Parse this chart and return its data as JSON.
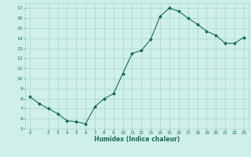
{
  "x": [
    0,
    1,
    2,
    3,
    4,
    5,
    6,
    7,
    8,
    9,
    10,
    11,
    12,
    13,
    14,
    15,
    16,
    17,
    18,
    19,
    20,
    21,
    22,
    23
  ],
  "y": [
    8.2,
    7.5,
    7.0,
    6.5,
    5.8,
    5.7,
    5.5,
    7.2,
    8.0,
    8.5,
    10.5,
    12.5,
    12.8,
    13.9,
    16.2,
    17.0,
    16.7,
    16.0,
    15.4,
    14.7,
    14.3,
    13.5,
    13.5,
    14.1
  ],
  "xlabel": "Humidex (Indice chaleur)",
  "ylabel": "",
  "title": "",
  "bg_color": "#cff0ea",
  "grid_color": "#aed8d0",
  "line_color": "#1a6b5a",
  "marker_color": "#1a6b5a",
  "ylim": [
    5,
    17.5
  ],
  "xlim": [
    -0.5,
    23.5
  ],
  "yticks": [
    5,
    6,
    7,
    8,
    9,
    10,
    11,
    12,
    13,
    14,
    15,
    16,
    17
  ],
  "xticks": [
    0,
    2,
    3,
    4,
    5,
    6,
    7,
    8,
    9,
    10,
    11,
    12,
    13,
    14,
    15,
    16,
    17,
    18,
    19,
    20,
    21,
    22,
    23
  ]
}
